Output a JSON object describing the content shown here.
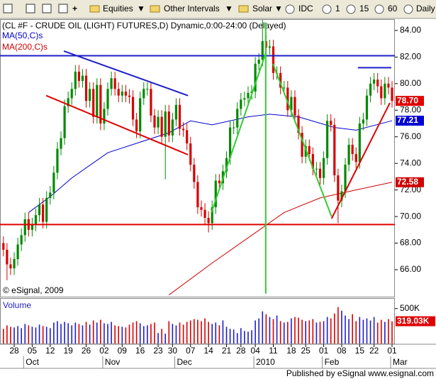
{
  "toolbar": {
    "menus": [
      "Equities",
      "Other Intervals",
      "Solar"
    ],
    "source": "IDC",
    "intervals": [
      "1",
      "15",
      "60",
      "Daily"
    ]
  },
  "chart_data": {
    "type": "candlestick",
    "title": "(CL #F - CRUDE OIL (LIGHT) FUTURES,D) Dynamic,0:00-24:00 (Delayed)",
    "copyright": "© eSignal, 2009",
    "categories": [
      null,
      null,
      null,
      "28",
      null,
      null,
      null,
      null,
      "05",
      null,
      null,
      null,
      null,
      "12",
      null,
      null,
      null,
      null,
      "19",
      null,
      null,
      null,
      null,
      "26",
      null,
      null,
      null,
      null,
      "02",
      null,
      null,
      null,
      null,
      "09",
      null,
      null,
      null,
      null,
      "16",
      null,
      null,
      null,
      null,
      "23",
      null,
      null,
      null,
      "30",
      null,
      null,
      null,
      null,
      "07",
      null,
      null,
      null,
      null,
      "14",
      null,
      null,
      null,
      null,
      "21",
      null,
      null,
      null,
      "28",
      null,
      null,
      null,
      "04",
      null,
      null,
      null,
      null,
      "11",
      null,
      null,
      null,
      null,
      "18",
      null,
      null,
      null,
      "25",
      null,
      null,
      null,
      null,
      "01",
      null,
      null,
      null,
      null,
      "08",
      null,
      null,
      null,
      null,
      "15",
      null,
      null,
      null,
      "22",
      null,
      null,
      null,
      null,
      "01"
    ],
    "month_labels": [
      null,
      null,
      null,
      null,
      null,
      null,
      "Oct",
      null,
      null,
      null,
      null,
      null,
      null,
      null,
      null,
      null,
      null,
      null,
      null,
      null,
      null,
      null,
      null,
      null,
      null,
      null,
      null,
      null,
      "Nov",
      null,
      null,
      null,
      null,
      null,
      null,
      null,
      null,
      null,
      null,
      null,
      null,
      null,
      null,
      null,
      null,
      null,
      null,
      null,
      "Dec",
      null,
      null,
      null,
      null,
      null,
      null,
      null,
      null,
      null,
      null,
      null,
      null,
      null,
      null,
      null,
      null,
      null,
      null,
      null,
      null,
      null,
      "2010",
      null,
      null,
      null,
      null,
      null,
      null,
      null,
      null,
      null,
      null,
      null,
      null,
      null,
      null,
      null,
      null,
      null,
      null,
      "Feb",
      null,
      null,
      null,
      null,
      null,
      null,
      null,
      null,
      null,
      null,
      null,
      null,
      null,
      null,
      null,
      null,
      null,
      null,
      "Mar"
    ],
    "open": [
      68.0,
      67.5,
      66.4,
      66.1,
      66.8,
      67.9,
      68.6,
      69.8,
      69.0,
      69.4,
      70.1,
      70.9,
      69.6,
      71.4,
      71.8,
      73.3,
      75.1,
      75.9,
      78.3,
      78.9,
      79.6,
      80.9,
      80.2,
      80.6,
      78.7,
      79.6,
      77.5,
      79.9,
      77.0,
      78.1,
      79.6,
      80.4,
      79.6,
      79.1,
      79.4,
      79.1,
      79.0,
      77.3,
      76.4,
      78.9,
      79.6,
      79.6,
      77.6,
      76.7,
      77.5,
      76.0,
      77.9,
      76.1,
      77.3,
      78.4,
      76.6,
      76.5,
      75.5,
      73.9,
      72.6,
      70.7,
      70.5,
      69.9,
      69.5,
      70.7,
      72.7,
      72.5,
      73.4,
      74.4,
      76.7,
      76.7,
      78.1,
      78.8,
      78.9,
      79.3,
      79.4,
      81.5,
      81.8,
      83.2,
      82.7,
      82.8,
      80.8,
      80.8,
      79.7,
      79.7,
      78.0,
      79.0,
      77.6,
      76.3,
      74.5,
      75.3,
      74.7,
      73.6,
      73.6,
      72.9,
      74.4,
      77.2,
      76.9,
      73.1,
      71.2,
      71.9,
      73.9,
      75.4,
      74.7,
      74.1,
      77.0,
      77.3,
      79.1,
      80.0,
      80.3,
      79.8,
      78.9,
      80.0,
      79.7
    ],
    "high": [
      68.5,
      68.0,
      66.9,
      67.3,
      68.4,
      69.1,
      70.3,
      70.3,
      69.9,
      70.6,
      71.4,
      71.4,
      71.9,
      72.3,
      73.8,
      75.6,
      76.4,
      78.8,
      79.4,
      80.1,
      81.4,
      81.4,
      81.1,
      81.1,
      80.1,
      80.1,
      80.4,
      80.4,
      78.6,
      80.1,
      80.9,
      80.9,
      80.1,
      79.9,
      79.9,
      79.6,
      79.5,
      77.8,
      79.4,
      80.1,
      80.1,
      80.1,
      78.1,
      78.0,
      78.0,
      78.4,
      78.4,
      77.8,
      78.9,
      78.9,
      77.1,
      77.0,
      76.0,
      74.4,
      73.1,
      71.2,
      71.0,
      70.4,
      71.2,
      73.2,
      73.2,
      73.9,
      74.9,
      77.2,
      77.2,
      78.6,
      79.3,
      79.4,
      79.8,
      79.9,
      82.0,
      82.3,
      84.8,
      83.7,
      83.3,
      83.3,
      81.3,
      81.3,
      80.2,
      80.2,
      79.5,
      79.5,
      78.1,
      76.8,
      75.8,
      75.8,
      75.2,
      74.1,
      74.1,
      74.9,
      77.7,
      77.7,
      77.4,
      73.6,
      72.4,
      74.4,
      75.9,
      75.9,
      75.2,
      77.5,
      77.8,
      79.6,
      80.5,
      80.8,
      80.8,
      80.3,
      80.5,
      80.5,
      80.2
    ],
    "low": [
      67.0,
      65.2,
      65.6,
      65.6,
      66.3,
      67.4,
      68.1,
      68.5,
      68.5,
      68.9,
      69.6,
      69.1,
      69.1,
      70.9,
      71.3,
      72.8,
      74.6,
      75.4,
      77.8,
      78.4,
      79.1,
      79.7,
      79.7,
      78.2,
      78.2,
      77.0,
      77.0,
      76.5,
      76.5,
      77.6,
      79.1,
      79.1,
      78.6,
      78.6,
      78.6,
      78.5,
      76.8,
      75.9,
      75.9,
      78.4,
      79.1,
      77.1,
      76.2,
      76.2,
      75.5,
      72.8,
      75.6,
      75.6,
      76.8,
      76.1,
      76.0,
      75.0,
      73.4,
      72.1,
      70.2,
      70.0,
      69.4,
      68.8,
      69.0,
      70.2,
      72.0,
      72.0,
      72.9,
      73.9,
      76.2,
      76.2,
      77.6,
      78.3,
      78.4,
      78.8,
      78.9,
      81.0,
      81.3,
      82.2,
      82.2,
      80.3,
      80.3,
      79.2,
      79.2,
      77.5,
      77.5,
      77.1,
      75.8,
      74.0,
      74.0,
      74.2,
      73.1,
      73.1,
      72.4,
      72.4,
      73.9,
      76.4,
      72.6,
      69.5,
      70.7,
      71.4,
      73.4,
      74.2,
      73.6,
      73.6,
      76.5,
      76.8,
      78.6,
      79.5,
      79.3,
      78.4,
      78.4,
      79.2,
      78.2
    ],
    "close": [
      67.5,
      66.4,
      66.1,
      66.8,
      67.9,
      68.6,
      69.8,
      69.0,
      69.4,
      70.1,
      70.9,
      69.6,
      71.4,
      71.8,
      73.3,
      75.1,
      75.9,
      78.3,
      78.9,
      79.6,
      80.9,
      80.2,
      80.6,
      78.7,
      79.6,
      77.5,
      79.9,
      77.0,
      78.1,
      79.6,
      80.4,
      79.6,
      79.1,
      79.4,
      79.1,
      79.0,
      77.3,
      76.4,
      78.9,
      79.6,
      79.6,
      77.6,
      76.7,
      77.5,
      76.0,
      77.9,
      76.1,
      77.3,
      78.4,
      76.6,
      76.5,
      75.5,
      73.9,
      72.6,
      70.7,
      70.5,
      69.9,
      69.5,
      70.7,
      72.7,
      72.5,
      73.4,
      74.4,
      76.7,
      76.7,
      78.1,
      78.8,
      78.9,
      79.3,
      79.4,
      81.5,
      81.8,
      83.2,
      82.7,
      82.8,
      80.8,
      80.8,
      79.7,
      79.7,
      78.0,
      79.0,
      77.6,
      76.3,
      74.5,
      75.3,
      74.7,
      73.6,
      73.6,
      72.9,
      74.4,
      77.2,
      76.9,
      73.1,
      71.2,
      71.9,
      73.9,
      75.4,
      74.7,
      74.1,
      77.0,
      77.3,
      79.1,
      80.0,
      80.3,
      79.8,
      78.9,
      80.0,
      79.7,
      78.7
    ],
    "last_label": "78.70",
    "up_color": "#008a00",
    "down_color": "#d80000",
    "last_color": "#e00000",
    "ylim": [
      63.97,
      84.85
    ],
    "yticks": [
      {
        "value": 66,
        "label": "66.00"
      },
      {
        "value": 68,
        "label": "68.00"
      },
      {
        "value": 70,
        "label": "70.00"
      },
      {
        "value": 72,
        "label": "72.00"
      },
      {
        "value": 74,
        "label": "74.00"
      },
      {
        "value": 76,
        "label": "76.00"
      },
      {
        "value": 78,
        "label": "78.00"
      },
      {
        "value": 80,
        "label": "80.00"
      },
      {
        "value": 82,
        "label": "82.00"
      },
      {
        "value": 84,
        "label": "84.00"
      }
    ],
    "moving_averages": [
      {
        "name": "MA(50,C)s",
        "color": "#0000d0",
        "x": [
          7,
          13,
          19,
          29,
          38,
          46,
          52,
          58,
          68,
          74,
          82,
          92,
          98,
          108
        ],
        "values": [
          70.3,
          71.5,
          72.9,
          74.8,
          75.6,
          76.3,
          77.2,
          76.9,
          77.5,
          77.7,
          77.5,
          76.7,
          76.5,
          77.21
        ]
      },
      {
        "name": "MA(200,C)s",
        "color": "#d00000",
        "x": [
          46,
          58,
          68,
          78,
          88,
          98,
          108
        ],
        "values": [
          64.1,
          66.5,
          68.4,
          70.3,
          71.4,
          72.0,
          72.58
        ]
      }
    ],
    "overlays": [
      {
        "color": "#1f1fc8",
        "x": [
          -1,
          109
        ],
        "values": [
          82.1,
          82.1
        ]
      },
      {
        "color": "#e00000",
        "x": [
          -1,
          109
        ],
        "values": [
          69.4,
          69.4
        ]
      },
      {
        "color": "#1f1fc8",
        "x": [
          16.8,
          51.3
        ],
        "values": [
          82.45,
          79.1
        ]
      },
      {
        "color": "#e00000",
        "x": [
          11.9,
          51.3
        ],
        "values": [
          79.1,
          74.65
        ]
      },
      {
        "color": "#33cc33",
        "x": [
          57.8,
          72.9
        ],
        "values": [
          70.3,
          82.3
        ]
      },
      {
        "color": "#33cc33",
        "x": [
          74.9,
          91.2
        ],
        "values": [
          81.5,
          70.0
        ]
      },
      {
        "color": "#e00000",
        "x": [
          91.2,
          107.4
        ],
        "values": [
          69.85,
          78.55
        ]
      },
      {
        "color": "#1f1fc8",
        "x": [
          98.5,
          107.8
        ],
        "values": [
          81.2,
          81.2
        ]
      },
      {
        "color": "#33cc33",
        "x": [
          72.9,
          72.9
        ],
        "values": [
          84.6,
          64.2
        ]
      }
    ],
    "volume": {
      "label": "Volume",
      "up_color": "#1f1fc8",
      "down_color": "#d80000",
      "last_color": "#e00000",
      "values": [
        210000,
        260000,
        240000,
        230000,
        250000,
        220000,
        280000,
        260000,
        240000,
        230000,
        270000,
        250000,
        240000,
        220000,
        300000,
        320000,
        280000,
        310000,
        290000,
        260000,
        300000,
        280000,
        260000,
        310000,
        270000,
        330000,
        300000,
        340000,
        290000,
        280000,
        310000,
        260000,
        250000,
        240000,
        230000,
        270000,
        300000,
        320000,
        290000,
        250000,
        260000,
        280000,
        300000,
        150000,
        210000,
        140000,
        320000,
        280000,
        260000,
        300000,
        270000,
        310000,
        330000,
        350000,
        340000,
        320000,
        360000,
        310000,
        280000,
        300000,
        260000,
        330000,
        240000,
        210000,
        200000,
        150000,
        220000,
        180000,
        170000,
        190000,
        330000,
        360000,
        460000,
        420000,
        380000,
        350000,
        400000,
        320000,
        300000,
        310000,
        360000,
        380000,
        370000,
        340000,
        320000,
        330000,
        350000,
        300000,
        310000,
        320000,
        380000,
        360000,
        430000,
        520000,
        470000,
        400000,
        350000,
        420000,
        320000,
        380000,
        340000,
        360000,
        330000,
        380000,
        300000,
        340000,
        310000,
        350000,
        319030
      ],
      "last_label": "319.03K",
      "ylim": [
        0,
        640000
      ],
      "yticks": [
        {
          "value": 500000,
          "label": "500K"
        }
      ]
    }
  },
  "footer": {
    "text": "Published by eSignal www.esignal.com"
  }
}
